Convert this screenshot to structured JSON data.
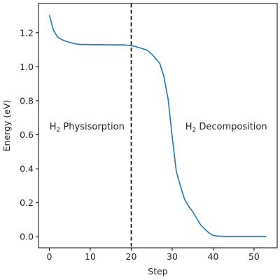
{
  "chart_data": {
    "type": "line",
    "title": "",
    "xlabel": "Step",
    "ylabel": "Energy (eV)",
    "xlim": [
      -2.65,
      55.65
    ],
    "ylim": [
      -0.065,
      1.372
    ],
    "xticks": [
      0,
      10,
      20,
      30,
      40,
      50
    ],
    "yticks": [
      0.0,
      0.2,
      0.4,
      0.6,
      0.8,
      1.0,
      1.2
    ],
    "ytick_labels": [
      "0.0",
      "0.2",
      "0.4",
      "0.6",
      "0.8",
      "1.0",
      "1.2"
    ],
    "grid": false,
    "legend": "none",
    "line_color": "#1f77b4",
    "divider": {
      "x": 20,
      "style": "dashed",
      "color": "#000000"
    },
    "annotations": [
      {
        "x": 9.2,
        "y": 0.65,
        "main": "H",
        "sub": "2",
        "rest": " Physisorption",
        "anchor": "middle"
      },
      {
        "x": 43.2,
        "y": 0.65,
        "main": "H",
        "sub": "2",
        "rest": " Decomposition",
        "anchor": "middle"
      }
    ],
    "series": [
      {
        "x": [
          0,
          1,
          2,
          3,
          4,
          5,
          6,
          7,
          8,
          9,
          10,
          11,
          12,
          13,
          14,
          15,
          16,
          17,
          18,
          19,
          20,
          21,
          22,
          23,
          24,
          25,
          26,
          27,
          28,
          29,
          30,
          31,
          32,
          33,
          34,
          35,
          36,
          37,
          38,
          39,
          40,
          41,
          42,
          43,
          44,
          45,
          46,
          47,
          48,
          49,
          50,
          51,
          52,
          53
        ],
        "y": [
          1.305,
          1.215,
          1.175,
          1.16,
          1.15,
          1.143,
          1.137,
          1.132,
          1.131,
          1.131,
          1.13,
          1.13,
          1.13,
          1.13,
          1.129,
          1.129,
          1.129,
          1.129,
          1.129,
          1.127,
          1.124,
          1.119,
          1.112,
          1.105,
          1.095,
          1.075,
          1.048,
          1.018,
          0.94,
          0.81,
          0.59,
          0.385,
          0.3,
          0.222,
          0.18,
          0.148,
          0.108,
          0.068,
          0.045,
          0.022,
          0.008,
          0.004,
          0.003,
          0.002,
          0.002,
          0.002,
          0.002,
          0.002,
          0.002,
          0.002,
          0.002,
          0.002,
          0.002,
          0.002
        ]
      }
    ]
  }
}
